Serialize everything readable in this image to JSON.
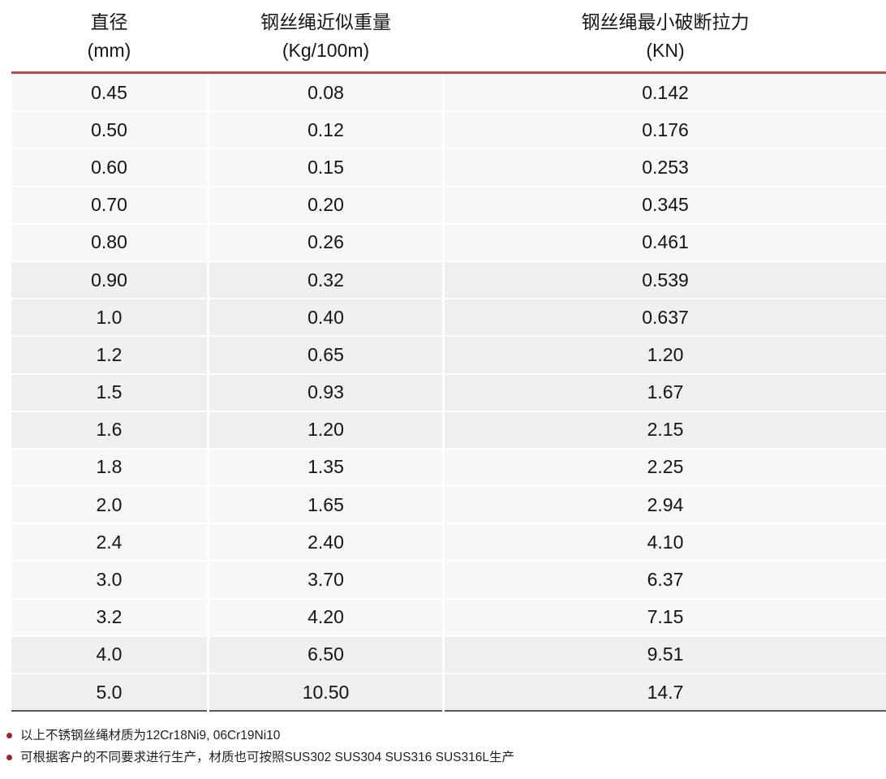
{
  "table": {
    "columns": [
      {
        "line1": "直径",
        "line2": "(mm)"
      },
      {
        "line1": "钢丝绳近似重量",
        "line2": "(Kg/100m)"
      },
      {
        "line1": "钢丝绳最小破断拉力",
        "line2": "(KN)"
      }
    ],
    "rows": [
      [
        "0.45",
        "0.08",
        "0.142"
      ],
      [
        "0.50",
        "0.12",
        "0.176"
      ],
      [
        "0.60",
        "0.15",
        "0.253"
      ],
      [
        "0.70",
        "0.20",
        "0.345"
      ],
      [
        "0.80",
        "0.26",
        "0.461"
      ],
      [
        "0.90",
        "0.32",
        "0.539"
      ],
      [
        "1.0",
        "0.40",
        "0.637"
      ],
      [
        "1.2",
        "0.65",
        "1.20"
      ],
      [
        "1.5",
        "0.93",
        "1.67"
      ],
      [
        "1.6",
        "1.20",
        "2.15"
      ],
      [
        "1.8",
        "1.35",
        "2.25"
      ],
      [
        "2.0",
        "1.65",
        "2.94"
      ],
      [
        "2.4",
        "2.40",
        "4.10"
      ],
      [
        "3.0",
        "3.70",
        "6.37"
      ],
      [
        "3.2",
        "4.20",
        "7.15"
      ],
      [
        "4.0",
        "6.50",
        "9.51"
      ],
      [
        "5.0",
        "10.50",
        "14.7"
      ]
    ]
  },
  "notes": [
    {
      "text": "以上不锈钢丝绳材质为12Cr18Ni9, 06Cr19Ni10"
    },
    {
      "text": "可根据客户的不同要求进行生产，材质也可按照SUS302 SUS304 SUS316 SUS316L生产"
    }
  ],
  "colors": {
    "accent_red": "#b5494e",
    "bullet_red": "#a2242a",
    "row_light": "#f7f7f6",
    "row_dark": "#efefee",
    "bottom_border": "#57585a"
  }
}
